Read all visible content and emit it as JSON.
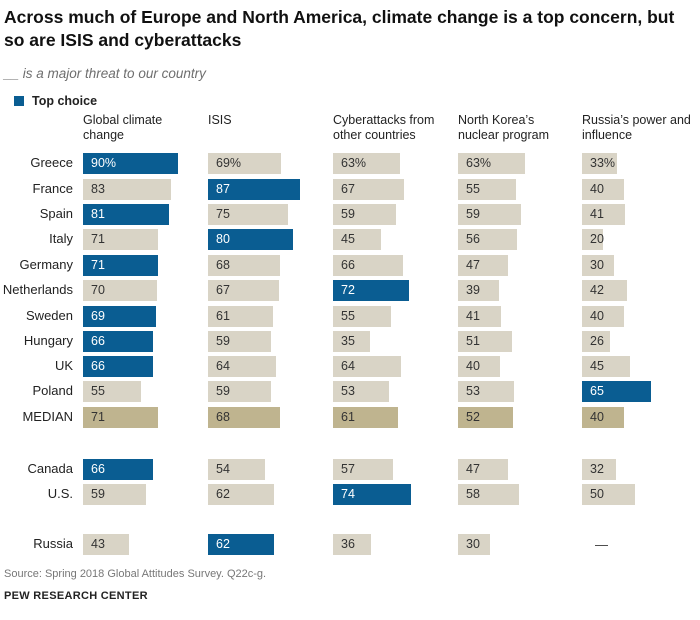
{
  "title": "Across much of Europe and North America, climate change is a top concern, but so are ISIS and cyberattacks",
  "subtitle": "__ is a major threat to our country",
  "legend": {
    "label": "Top choice",
    "color": "#0a5d92"
  },
  "source": "Source: Spring 2018 Global Attitudes Survey. Q22c-g.",
  "org": "PEW RESEARCH CENTER",
  "colors": {
    "top": "#0a5d92",
    "normal": "#d9d4c6",
    "median": "#bfb48f"
  },
  "chart_data": {
    "type": "table",
    "title": "Across much of Europe and North America, climate change is a top concern, but so are ISIS and cyberattacks",
    "unit": "%",
    "columns": [
      {
        "label": "Global climate change"
      },
      {
        "label": "ISIS"
      },
      {
        "label": "Cyberattacks from other countries"
      },
      {
        "label": "North Korea’s nuclear program"
      },
      {
        "label": "Russia’s power and influence"
      }
    ],
    "rows": [
      {
        "country": "Greece",
        "values": [
          90,
          69,
          63,
          63,
          33
        ],
        "labels": [
          "90%",
          "69%",
          "63%",
          "63%",
          "33%"
        ],
        "top": [
          0
        ]
      },
      {
        "country": "France",
        "values": [
          83,
          87,
          67,
          55,
          40
        ],
        "labels": [
          "83",
          "87",
          "67",
          "55",
          "40"
        ],
        "top": [
          1
        ]
      },
      {
        "country": "Spain",
        "values": [
          81,
          75,
          59,
          59,
          41
        ],
        "labels": [
          "81",
          "75",
          "59",
          "59",
          "41"
        ],
        "top": [
          0
        ]
      },
      {
        "country": "Italy",
        "values": [
          71,
          80,
          45,
          56,
          20
        ],
        "labels": [
          "71",
          "80",
          "45",
          "56",
          "20"
        ],
        "top": [
          1
        ]
      },
      {
        "country": "Germany",
        "values": [
          71,
          68,
          66,
          47,
          30
        ],
        "labels": [
          "71",
          "68",
          "66",
          "47",
          "30"
        ],
        "top": [
          0
        ]
      },
      {
        "country": "Netherlands",
        "values": [
          70,
          67,
          72,
          39,
          42
        ],
        "labels": [
          "70",
          "67",
          "72",
          "39",
          "42"
        ],
        "top": [
          2
        ]
      },
      {
        "country": "Sweden",
        "values": [
          69,
          61,
          55,
          41,
          40
        ],
        "labels": [
          "69",
          "61",
          "55",
          "41",
          "40"
        ],
        "top": [
          0
        ]
      },
      {
        "country": "Hungary",
        "values": [
          66,
          59,
          35,
          51,
          26
        ],
        "labels": [
          "66",
          "59",
          "35",
          "51",
          "26"
        ],
        "top": [
          0
        ]
      },
      {
        "country": "UK",
        "values": [
          66,
          64,
          64,
          40,
          45
        ],
        "labels": [
          "66",
          "64",
          "64",
          "40",
          "45"
        ],
        "top": [
          0
        ]
      },
      {
        "country": "Poland",
        "values": [
          55,
          59,
          53,
          53,
          65
        ],
        "labels": [
          "55",
          "59",
          "53",
          "53",
          "65"
        ],
        "top": [
          4
        ]
      },
      {
        "country": "MEDIAN",
        "values": [
          71,
          68,
          61,
          52,
          40
        ],
        "labels": [
          "71",
          "68",
          "61",
          "52",
          "40"
        ],
        "top": [],
        "median": true
      },
      {
        "country": "Canada",
        "values": [
          66,
          54,
          57,
          47,
          32
        ],
        "labels": [
          "66",
          "54",
          "57",
          "47",
          "32"
        ],
        "top": [
          0
        ]
      },
      {
        "country": "U.S.",
        "values": [
          59,
          62,
          74,
          58,
          50
        ],
        "labels": [
          "59",
          "62",
          "74",
          "58",
          "50"
        ],
        "top": [
          2
        ]
      },
      {
        "country": "Russia",
        "values": [
          43,
          62,
          36,
          30,
          null
        ],
        "labels": [
          "43",
          "62",
          "36",
          "30",
          "—"
        ],
        "top": [
          1
        ]
      }
    ]
  }
}
